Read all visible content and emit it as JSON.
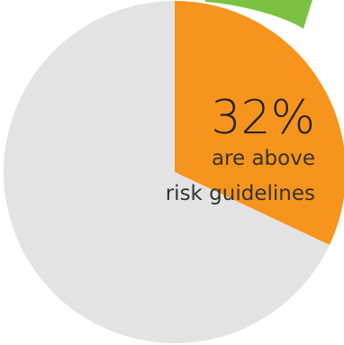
{
  "chart_data": {
    "type": "pie",
    "slices": [
      {
        "label": "are above risk guidelines",
        "value": 32,
        "color": "#f7941d"
      },
      {
        "label": "",
        "value": 68,
        "color": "#e3e3e3"
      }
    ],
    "accent_wedge_color": "#7cc242",
    "annotation": {
      "value_text": "32%",
      "line1": "are above",
      "line2": "risk guidelines"
    }
  }
}
